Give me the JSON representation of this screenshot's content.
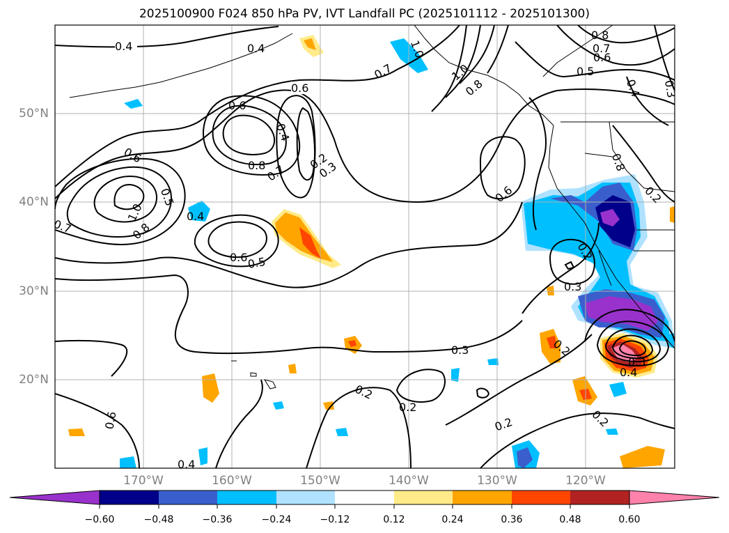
{
  "title": "2025100900 F024 850 hPa PV, IVT Landfall PC (2025101112 - 2025101300)",
  "map": {
    "lon_range": [
      -180,
      -110
    ],
    "lat_range": [
      10,
      60
    ],
    "lat_labels": [
      "50°N",
      "40°N",
      "30°N",
      "20°N"
    ],
    "lon_labels": [
      "170°W",
      "160°W",
      "150°W",
      "140°W",
      "130°W",
      "120°W"
    ],
    "label_color": "#808080",
    "gridlines": true
  },
  "contour_labels": [
    "0.4",
    "0.4",
    "1.0",
    "0.7",
    "1.0",
    "0.8",
    "0.8",
    "0.7",
    "0.6",
    "0.5",
    "0.4",
    "0.3",
    "0.6",
    "0.6",
    "0.8",
    "0.7",
    "0.4",
    "0.2",
    "0.3",
    "0.6",
    "0.5",
    "1.0",
    "0.8",
    "0.4",
    "0.7",
    "0.6",
    "0.5",
    "0.6",
    "0.3",
    "0.3",
    "0.2",
    "0.2",
    "0.2",
    "0.2",
    "0.2",
    "0.6",
    "0.4",
    "0.8",
    "0.2",
    "0.3",
    "0.4",
    "0.2"
  ],
  "colorbar": {
    "ticks": [
      "−0.60",
      "−0.48",
      "−0.36",
      "−0.24",
      "−0.12",
      "0.12",
      "0.24",
      "0.36",
      "0.48",
      "0.60"
    ],
    "colors": [
      "#9932cc",
      "#00008b",
      "#3a5fcd",
      "#00bfff",
      "#b0e2ff",
      "#ffffff",
      "#ffeb8a",
      "#ffa500",
      "#ff4500",
      "#b22222",
      "#ff82ab"
    ]
  }
}
